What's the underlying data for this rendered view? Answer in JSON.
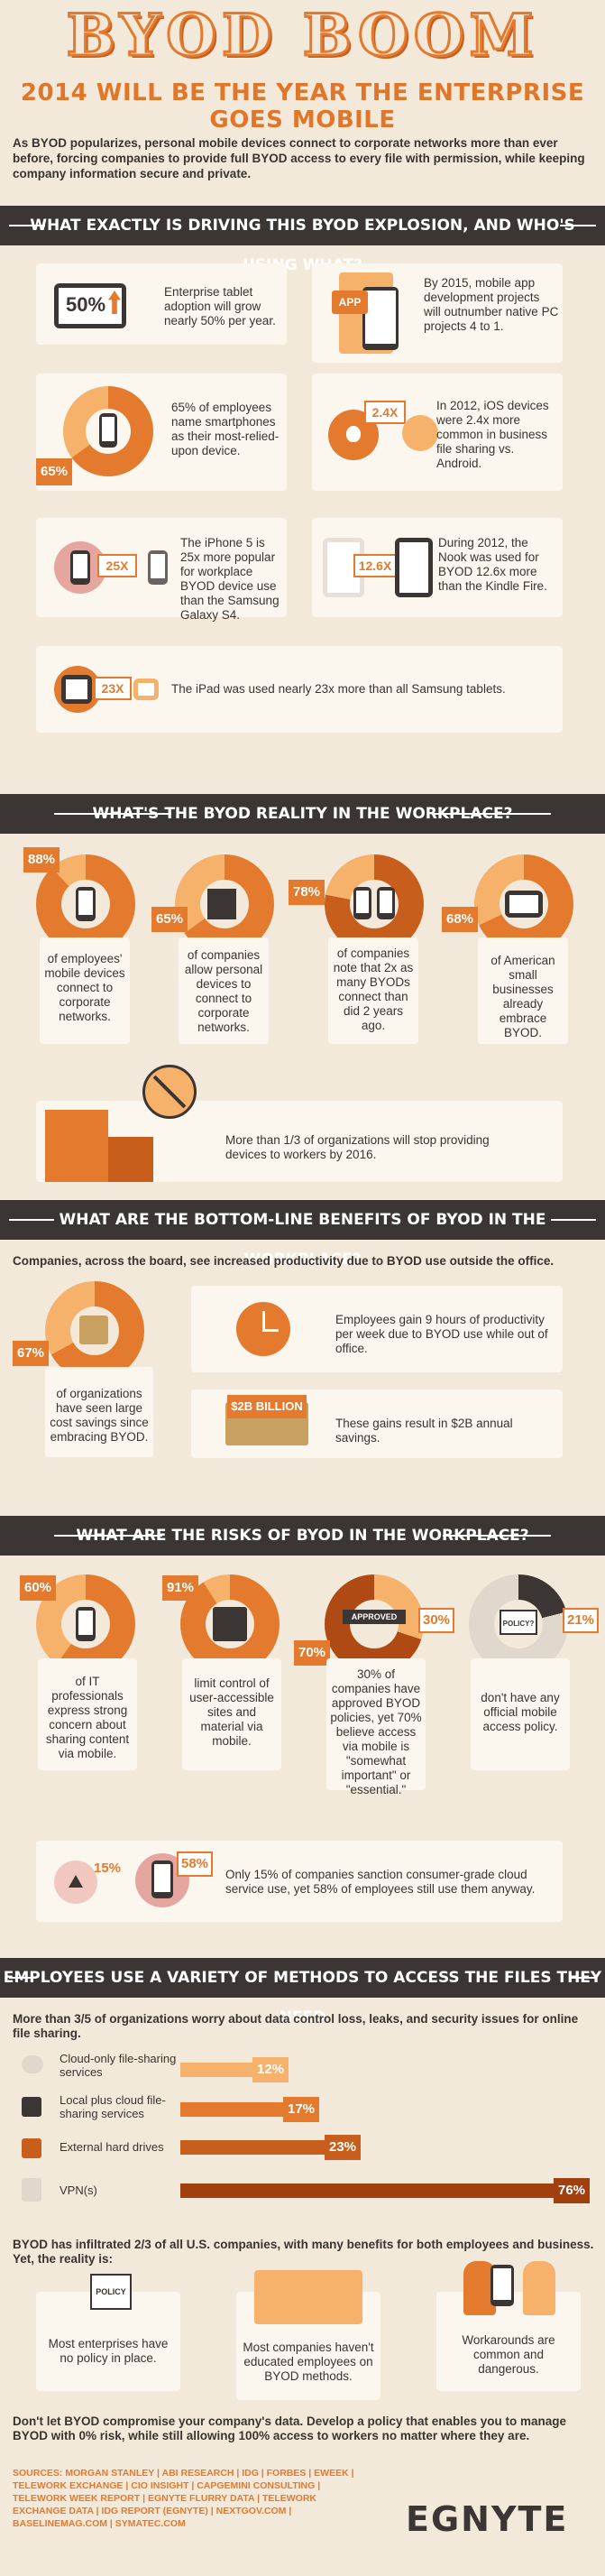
{
  "header": {
    "title": "BYOD BOOM",
    "subtitle": "2014 WILL BE THE YEAR THE ENTERPRISE GOES MOBILE",
    "intro": "As BYOD popularizes, personal mobile devices connect to corporate networks more than ever before, forcing companies to provide full BYOD access to every file with permission, while keeping company information secure and private."
  },
  "section1": {
    "heading": "WHAT EXACTLY IS DRIVING THIS BYOD EXPLOSION, AND WHO'S USING WHAT?",
    "tablet_adoption": {
      "badge": "50%",
      "text": "Enterprise tablet adoption will grow nearly 50% per year."
    },
    "app_dev": {
      "badge": "APP",
      "text": "By 2015, mobile app development projects will outnumber native PC projects 4 to 1."
    },
    "smartphones": {
      "badge": "65%",
      "text": "65% of employees name smartphones as their most-relied-upon device."
    },
    "ios": {
      "badge": "2.4X",
      "text": "In 2012, iOS devices were 2.4x more common in business file sharing vs. Android."
    },
    "iphone5s": {
      "badge": "25X",
      "text": "The iPhone 5 is 25x more popular for workplace BYOD device use than the Samsung Galaxy S4."
    },
    "nook": {
      "badge": "12.6X",
      "text": "During 2012, the Nook was used for BYOD 12.6x more than the Kindle Fire."
    },
    "ipad": {
      "badge": "23X",
      "text": "The iPad was used nearly 23x more than all Samsung tablets."
    }
  },
  "section2": {
    "heading": "WHAT'S THE BYOD REALITY IN THE WORKPLACE?",
    "stats": [
      {
        "badge": "88%",
        "text": "of employees' mobile devices connect to corporate networks."
      },
      {
        "badge": "65%",
        "text": "of companies allow personal devices to connect to corporate networks."
      },
      {
        "badge": "78%",
        "text": "of companies note that 2x as many BYODs connect than did 2 years ago."
      },
      {
        "badge": "68%",
        "text": "of American small businesses already embrace BYOD."
      }
    ],
    "stop_providing": "More than 1/3 of organizations will stop providing devices to workers by 2016."
  },
  "section3": {
    "heading": "WHAT ARE THE BOTTOM-LINE BENEFITS OF BYOD IN THE WORKPLACE?",
    "lead": "Companies, across the board, see increased productivity due to BYOD use outside the office.",
    "savings": {
      "badge": "67%",
      "text": "of organizations have seen large cost savings since embracing BYOD."
    },
    "hours": "Employees gain 9 hours of productivity per week due to BYOD use while out of office.",
    "billion": {
      "badge": "$2B BILLION",
      "text": "These gains result in $2B annual savings."
    }
  },
  "section4": {
    "heading": "WHAT ARE THE RISKS OF BYOD IN THE WORKPLACE?",
    "stats": [
      {
        "badge": "60%",
        "text": "of IT professionals express strong concern about sharing content via mobile."
      },
      {
        "badge": "91%",
        "text": "limit control of user-accessible sites and material via mobile."
      },
      {
        "badge": "70%",
        "badge2": "30%",
        "sign": "APPROVED",
        "text": "30% of companies have approved BYOD policies, yet 70% believe access via mobile is \"somewhat important\" or \"essential.\""
      },
      {
        "badge": "21%",
        "sign": "POLICY?",
        "text": "don't have any official mobile access policy."
      }
    ],
    "cloud": {
      "badge": "15%",
      "badge2": "58%",
      "text": "Only 15% of companies sanction consumer-grade cloud service use, yet 58% of employees still use them anyway."
    }
  },
  "section5": {
    "heading": "EMPLOYEES USE A VARIETY OF METHODS TO ACCESS THE FILES THEY NEED",
    "lead": "More than 3/5 of organizations worry about data control loss, leaks, and security issues for online file sharing.",
    "methods": [
      {
        "label": "Cloud-only file-sharing services",
        "value": 12
      },
      {
        "label": "Local plus cloud file-sharing services",
        "value": 17
      },
      {
        "label": "External hard drives",
        "value": 23
      },
      {
        "label": "VPN(s)",
        "value": 76
      }
    ],
    "methods_display": [
      "12%",
      "17%",
      "23%",
      "76%"
    ],
    "lead2": "BYOD has infiltrated 2/3 of all U.S. companies, with many benefits for both employees and business. Yet, the reality is:",
    "realities": [
      {
        "sign": "POLICY",
        "text": "Most enterprises have no policy in place."
      },
      {
        "text": "Most companies haven't educated employees on BYOD methods."
      },
      {
        "text": "Workarounds are common and dangerous."
      }
    ],
    "closing": "Don't let BYOD compromise your company's data. Develop a policy that enables you to manage BYOD with 0% risk, while still allowing 100% access to workers no matter where they are."
  },
  "footer": {
    "sources": "SOURCES: MORGAN STANLEY | ABI RESEARCH | IDG | FORBES | EWEEK | TELEWORK EXCHANGE | CIO INSIGHT | CAPGEMINI CONSULTING | TELEWORK WEEK REPORT | EGNYTE FLURRY DATA | TELEWORK EXCHANGE DATA | IDG REPORT (EGNYTE) | NEXTGOV.COM | BASELINEMAG.COM | SYMATEC.COM",
    "logo": "EGNYTE"
  },
  "colors": {
    "accent": "#e47a2d",
    "dark": "#3b3634",
    "light": "#f3e9da",
    "peach": "#f6b26b"
  }
}
